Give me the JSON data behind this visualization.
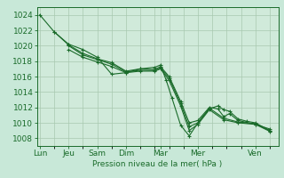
{
  "background_color": "#c8e8d8",
  "plot_bg_color": "#d0eada",
  "grid_color": "#a8c8b0",
  "line_color": "#1a6b2a",
  "ylabel_values": [
    1008,
    1010,
    1012,
    1014,
    1016,
    1018,
    1020,
    1022,
    1024
  ],
  "ylim": [
    1007,
    1025
  ],
  "xlim": [
    -0.1,
    8.3
  ],
  "xlabel": "Pression niveau de la mer( hPa )",
  "xtick_positions": [
    0.0,
    1.0,
    2.0,
    3.0,
    4.2,
    5.5,
    7.5
  ],
  "xtick_labels": [
    "Lun",
    "Jeu",
    "Sam",
    "Dim",
    "Mar",
    "Mer",
    "Ven"
  ],
  "lines": [
    [
      0.0,
      1024.0,
      0.5,
      1021.8,
      1.0,
      1020.2,
      1.5,
      1019.5,
      2.0,
      1018.5,
      2.5,
      1016.3,
      3.0,
      1016.5,
      3.5,
      1017.0,
      4.0,
      1017.2,
      4.2,
      1017.5,
      4.4,
      1015.5,
      4.6,
      1013.2,
      4.9,
      1009.7,
      5.2,
      1008.3,
      5.5,
      1010.0,
      5.9,
      1011.8,
      6.2,
      1012.2,
      6.4,
      1011.7,
      6.6,
      1011.5,
      6.9,
      1010.5,
      7.2,
      1010.2,
      7.5,
      1010.0,
      8.0,
      1009.0
    ],
    [
      0.5,
      1021.8,
      1.0,
      1020.1,
      1.5,
      1019.0,
      2.0,
      1018.3,
      2.5,
      1017.8,
      3.0,
      1016.7,
      3.5,
      1017.0,
      4.0,
      1016.9,
      4.2,
      1017.3,
      4.5,
      1016.0,
      4.9,
      1012.8,
      5.2,
      1010.0,
      5.5,
      1010.3,
      5.9,
      1012.0,
      6.2,
      1011.8,
      6.4,
      1010.8,
      6.6,
      1011.2,
      6.9,
      1010.3,
      7.5,
      1009.8,
      8.0,
      1009.2
    ],
    [
      1.0,
      1020.0,
      1.5,
      1018.8,
      2.0,
      1018.2,
      2.5,
      1017.6,
      3.0,
      1016.6,
      3.5,
      1016.8,
      4.0,
      1016.8,
      4.2,
      1017.1,
      4.5,
      1015.8,
      4.9,
      1012.5,
      5.2,
      1009.5,
      5.5,
      1010.0,
      5.9,
      1011.9,
      6.4,
      1010.6,
      6.9,
      1010.1,
      7.5,
      1009.9,
      8.0,
      1009.0
    ],
    [
      1.0,
      1019.5,
      1.5,
      1018.5,
      2.0,
      1017.9,
      2.5,
      1017.3,
      3.0,
      1016.5,
      3.5,
      1016.7,
      4.0,
      1016.7,
      4.2,
      1017.0,
      4.5,
      1015.5,
      4.9,
      1012.2,
      5.2,
      1009.0,
      5.5,
      1009.8,
      5.9,
      1011.7,
      6.4,
      1010.4,
      6.9,
      1010.0,
      7.5,
      1009.8,
      8.0,
      1008.9
    ]
  ],
  "marker": "+",
  "marker_size": 3,
  "line_width": 0.8,
  "font_size": 6.5
}
